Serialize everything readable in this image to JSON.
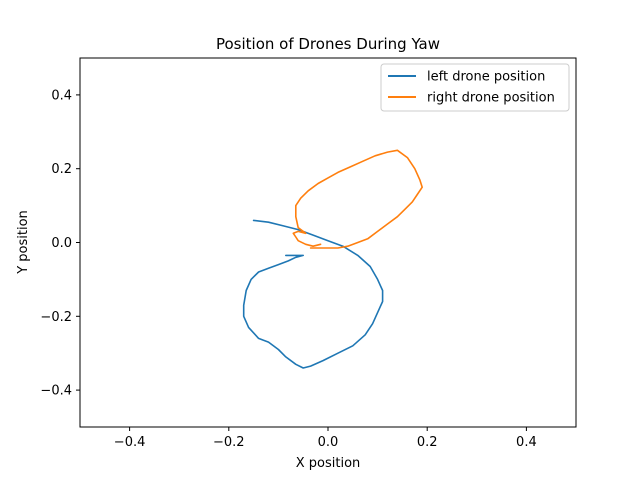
{
  "chart_data": {
    "type": "line",
    "title": "Position of Drones During Yaw",
    "xlabel": "X position",
    "ylabel": "Y position",
    "xlim": [
      -0.5,
      0.5
    ],
    "ylim": [
      -0.5,
      0.5
    ],
    "xticks": [
      -0.4,
      -0.2,
      0.0,
      0.2,
      0.4
    ],
    "xtick_labels": [
      "−0.4",
      "−0.2",
      "0.0",
      "0.2",
      "0.4"
    ],
    "yticks": [
      -0.4,
      -0.2,
      0.0,
      0.2,
      0.4
    ],
    "ytick_labels": [
      "−0.4",
      "−0.2",
      "0.0",
      "0.2",
      "0.4"
    ],
    "grid": false,
    "legend_position": "top-right",
    "series": [
      {
        "name": "left drone position",
        "color": "#1f77b4",
        "points": [
          [
            -0.15,
            0.06
          ],
          [
            -0.12,
            0.055
          ],
          [
            -0.09,
            0.045
          ],
          [
            -0.06,
            0.035
          ],
          [
            -0.03,
            0.02
          ],
          [
            0.0,
            0.005
          ],
          [
            0.03,
            -0.01
          ],
          [
            0.06,
            -0.035
          ],
          [
            0.085,
            -0.065
          ],
          [
            0.1,
            -0.1
          ],
          [
            0.11,
            -0.13
          ],
          [
            0.11,
            -0.16
          ],
          [
            0.1,
            -0.19
          ],
          [
            0.09,
            -0.22
          ],
          [
            0.075,
            -0.25
          ],
          [
            0.05,
            -0.28
          ],
          [
            0.02,
            -0.3
          ],
          [
            -0.01,
            -0.32
          ],
          [
            -0.035,
            -0.335
          ],
          [
            -0.05,
            -0.34
          ],
          [
            -0.065,
            -0.33
          ],
          [
            -0.085,
            -0.31
          ],
          [
            -0.1,
            -0.29
          ],
          [
            -0.12,
            -0.27
          ],
          [
            -0.13,
            -0.265
          ],
          [
            -0.14,
            -0.26
          ],
          [
            -0.16,
            -0.23
          ],
          [
            -0.17,
            -0.2
          ],
          [
            -0.17,
            -0.17
          ],
          [
            -0.165,
            -0.13
          ],
          [
            -0.155,
            -0.1
          ],
          [
            -0.14,
            -0.08
          ],
          [
            -0.12,
            -0.07
          ],
          [
            -0.1,
            -0.06
          ],
          [
            -0.08,
            -0.05
          ],
          [
            -0.065,
            -0.04
          ],
          [
            -0.05,
            -0.035
          ],
          [
            -0.06,
            -0.035
          ],
          [
            -0.075,
            -0.035
          ],
          [
            -0.085,
            -0.035
          ]
        ]
      },
      {
        "name": "right drone position",
        "color": "#ff7f0e",
        "points": [
          [
            -0.015,
            -0.005
          ],
          [
            -0.03,
            -0.01
          ],
          [
            -0.045,
            -0.005
          ],
          [
            -0.06,
            0.005
          ],
          [
            -0.065,
            0.015
          ],
          [
            -0.07,
            0.025
          ],
          [
            -0.06,
            0.03
          ],
          [
            -0.045,
            0.025
          ],
          [
            -0.06,
            0.04
          ],
          [
            -0.065,
            0.07
          ],
          [
            -0.065,
            0.1
          ],
          [
            -0.055,
            0.12
          ],
          [
            -0.04,
            0.14
          ],
          [
            -0.02,
            0.16
          ],
          [
            0.0,
            0.175
          ],
          [
            0.02,
            0.19
          ],
          [
            0.045,
            0.205
          ],
          [
            0.07,
            0.22
          ],
          [
            0.095,
            0.235
          ],
          [
            0.12,
            0.245
          ],
          [
            0.14,
            0.25
          ],
          [
            0.16,
            0.23
          ],
          [
            0.175,
            0.2
          ],
          [
            0.185,
            0.17
          ],
          [
            0.19,
            0.15
          ],
          [
            0.18,
            0.13
          ],
          [
            0.17,
            0.11
          ],
          [
            0.155,
            0.09
          ],
          [
            0.14,
            0.07
          ],
          [
            0.12,
            0.05
          ],
          [
            0.1,
            0.03
          ],
          [
            0.08,
            0.01
          ],
          [
            0.06,
            0.0
          ],
          [
            0.04,
            -0.01
          ],
          [
            0.02,
            -0.015
          ],
          [
            0.0,
            -0.015
          ],
          [
            -0.02,
            -0.015
          ],
          [
            -0.035,
            -0.015
          ]
        ]
      }
    ]
  }
}
